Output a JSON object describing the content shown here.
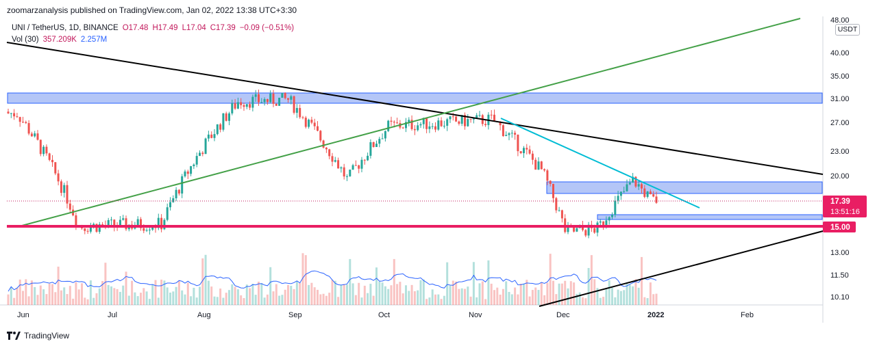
{
  "publisher_line": "zoomarzanalysis published on TradingView.com, Jan 02, 2022 13:38 UTC+3:30",
  "legend": {
    "symbol": "UNI / TetherUS, 1D, BINANCE",
    "open": "O17.48",
    "high": "H17.49",
    "low": "L17.04",
    "close": "C17.39",
    "change": "−0.09 (−0.51%)",
    "vol_label": "Vol (30)",
    "vol_value": "357.209K",
    "vol_ma": "2.257M"
  },
  "currency": "USDT",
  "footer_brand": "TradingView",
  "colors": {
    "up": "#26a69a",
    "down": "#ef5350",
    "support_line": "#e91e63",
    "zone_fill": "#b4c6f7",
    "zone_border": "#2962ff",
    "green_trend": "#43a047",
    "black_trend": "#000000",
    "cyan_trend": "#00bcd4",
    "vol_ma_line": "#2962ff"
  },
  "chart_data": {
    "type": "candlestick",
    "symbol": "UNI / TetherUS",
    "interval": "1D",
    "exchange": "BINANCE",
    "scale": "log",
    "y_ticks": [
      "48.00",
      "40.00",
      "35.00",
      "31.00",
      "27.00",
      "23.00",
      "20.00",
      "17.39",
      "15.00",
      "13.00",
      "11.50",
      "10.10"
    ],
    "x_ticks": [
      "Jun",
      "Jul",
      "Aug",
      "Sep",
      "Oct",
      "Nov",
      "Dec",
      "2022",
      "Feb"
    ],
    "last_price": {
      "value": 17.39,
      "label": "17.39",
      "countdown": "13:51:16"
    },
    "horizontal_line": {
      "value": 15.0,
      "label": "15.00"
    },
    "key_points": [
      {
        "date": "2021-06-01",
        "price": 28.5
      },
      {
        "date": "2021-06-22",
        "price": 15.0
      },
      {
        "date": "2021-07-20",
        "price": 15.2
      },
      {
        "date": "2021-08-15",
        "price": 30.5
      },
      {
        "date": "2021-09-01",
        "price": 30.8
      },
      {
        "date": "2021-09-21",
        "price": 19.5
      },
      {
        "date": "2021-10-05",
        "price": 26.5
      },
      {
        "date": "2021-11-09",
        "price": 27.5
      },
      {
        "date": "2021-11-26",
        "price": 20.5
      },
      {
        "date": "2021-12-04",
        "price": 14.5
      },
      {
        "date": "2021-12-15",
        "price": 14.8
      },
      {
        "date": "2021-12-27",
        "price": 19.5
      },
      {
        "date": "2022-01-02",
        "price": 17.39
      }
    ],
    "zones": [
      {
        "from": 30.3,
        "to": 32.4
      },
      {
        "from": 18.1,
        "to": 19.5
      },
      {
        "from": 15.5,
        "to": 16.0
      }
    ],
    "trendlines": [
      {
        "color": "black",
        "from": {
          "date": "2021-05-27",
          "price": 42.5
        },
        "to": {
          "date": "2022-03-01",
          "price": 20.3
        }
      },
      {
        "color": "green",
        "from": {
          "date": "2021-05-28",
          "price": 15.0
        },
        "to": {
          "date": "2022-02-24",
          "price": 48.0
        }
      },
      {
        "color": "cyan",
        "from": {
          "date": "2021-11-09",
          "price": 27.5
        },
        "to": {
          "date": "2022-01-20",
          "price": 17.2
        }
      },
      {
        "color": "black",
        "from": {
          "date": "2021-11-28",
          "price": 9.9
        },
        "to": {
          "date": "2022-03-01",
          "price": 15.2
        }
      }
    ]
  }
}
